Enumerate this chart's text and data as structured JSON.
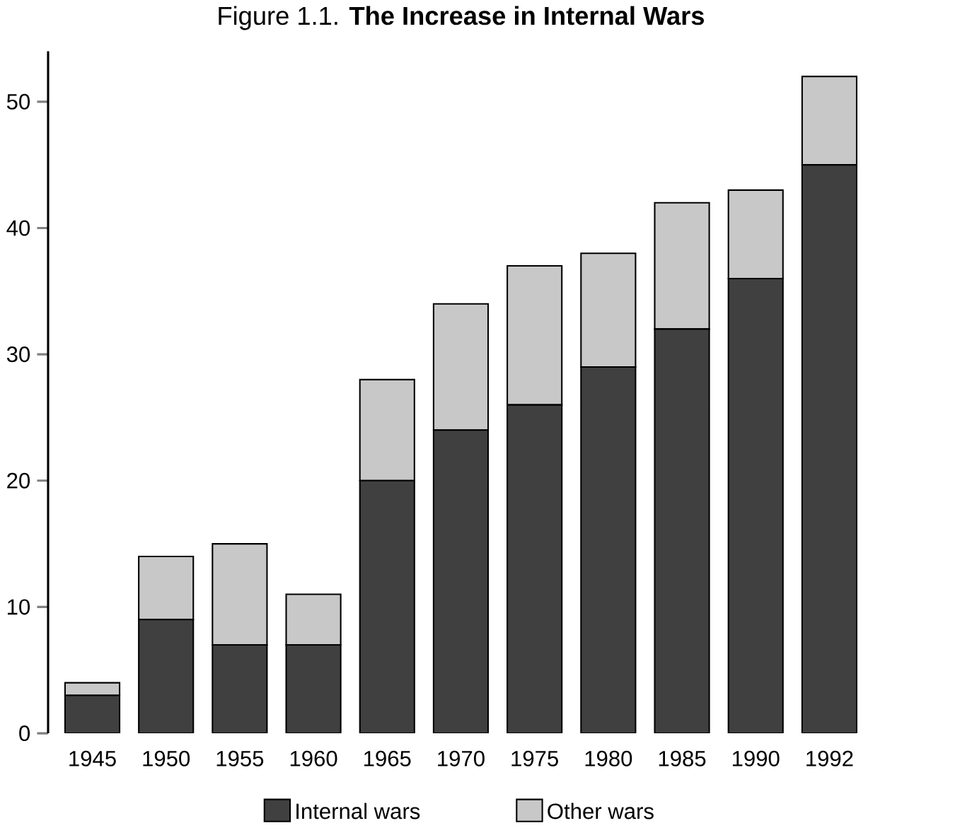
{
  "chart_data": {
    "type": "bar",
    "title": "Figure 1.1. **The Increase in Internal Wars**",
    "categories": [
      "1945",
      "1950",
      "1955",
      "1960",
      "1965",
      "1970",
      "1975",
      "1980",
      "1985",
      "1990",
      "1992"
    ],
    "series": [
      {
        "name": "Internal wars",
        "color": "#404040",
        "values": [
          3,
          9,
          7,
          7,
          20,
          24,
          26,
          29,
          32,
          36,
          45
        ]
      },
      {
        "name": "Other wars",
        "color": "#c8c8c8",
        "values": [
          1,
          5,
          8,
          4,
          8,
          10,
          11,
          9,
          10,
          7,
          7
        ]
      }
    ],
    "stacked": true,
    "ylim": [
      0,
      54
    ],
    "yticks": [
      0,
      10,
      20,
      30,
      40,
      50
    ],
    "legend": "bottom"
  }
}
